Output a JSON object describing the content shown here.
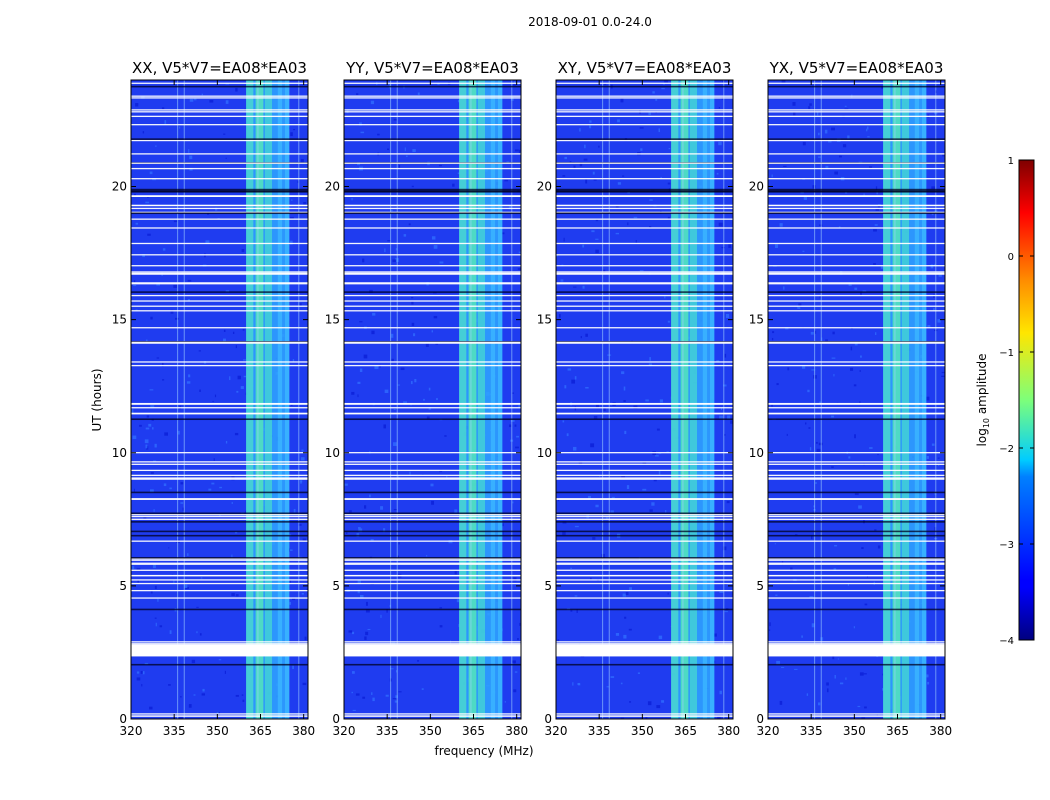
{
  "figure": {
    "title": "2018-09-01 0.0-24.0"
  },
  "chart_data": {
    "type": "heatmap",
    "title": "2018-09-01 0.0-24.0",
    "xlabel": "frequency (MHz)",
    "ylabel": "UT (hours)",
    "xlim": [
      320,
      381.5
    ],
    "ylim": [
      0,
      24
    ],
    "xticks": [
      320,
      335,
      350,
      365,
      380
    ],
    "yticks": [
      0,
      5,
      10,
      15,
      20
    ],
    "panels": [
      {
        "title": "XX, V5*V7=EA08*EA03"
      },
      {
        "title": "YY, V5*V7=EA08*EA03"
      },
      {
        "title": "XY, V5*V7=EA08*EA03"
      },
      {
        "title": "YX, V5*V7=EA08*EA03"
      }
    ],
    "bright_band_mhz": [
      360,
      375
    ],
    "flag_gap_hours": [
      2.35,
      2.8
    ],
    "colorbar": {
      "label": "log10 amplitude",
      "label_main": "log",
      "label_sub": "10",
      "label_rest": " amplitude",
      "range": [
        -4,
        1
      ],
      "ticks": [
        -4,
        -3,
        -2,
        -1,
        0,
        1
      ],
      "tick_labels": [
        "−4",
        "−3",
        "−2",
        "−1",
        "0",
        "1"
      ],
      "colormap": "jet"
    }
  }
}
